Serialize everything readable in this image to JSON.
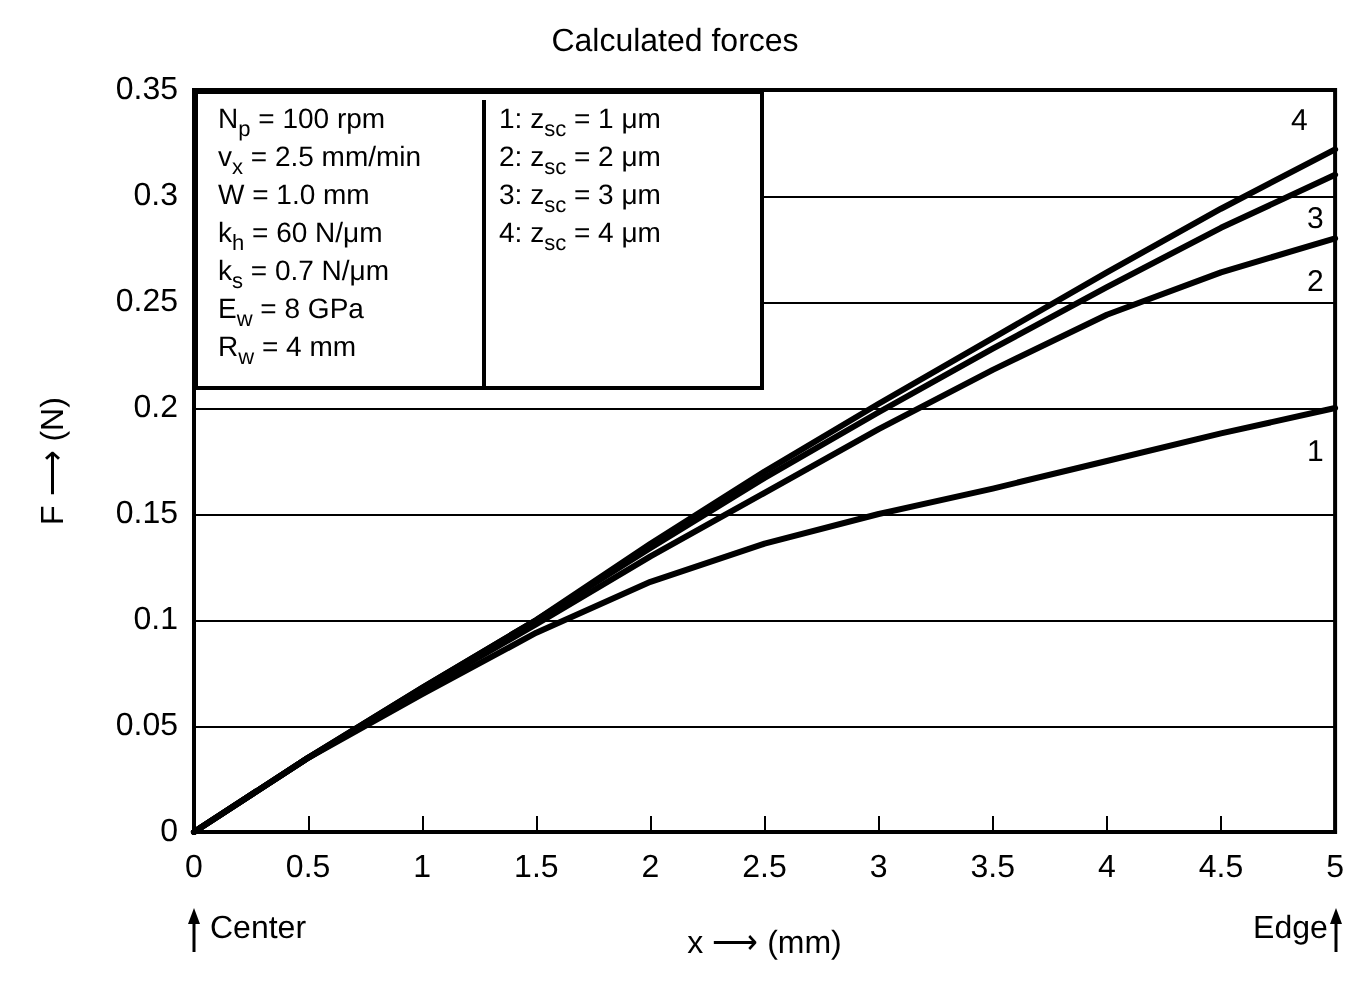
{
  "chart_data": {
    "type": "line",
    "title": "Calculated forces",
    "xlabel": "x ⟶ (mm)",
    "ylabel": "F ⟶ (N)",
    "x": [
      0,
      0.5,
      1,
      1.5,
      2,
      2.5,
      3,
      3.5,
      4,
      4.5,
      5
    ],
    "series": [
      {
        "name": "1",
        "color": "#000000",
        "values": [
          0,
          0.035,
          0.065,
          0.094,
          0.118,
          0.136,
          0.15,
          0.162,
          0.175,
          0.188,
          0.2
        ]
      },
      {
        "name": "2",
        "color": "#000000",
        "values": [
          0,
          0.035,
          0.067,
          0.098,
          0.13,
          0.16,
          0.19,
          0.218,
          0.244,
          0.264,
          0.28
        ]
      },
      {
        "name": "3",
        "color": "#000000",
        "values": [
          0,
          0.035,
          0.068,
          0.1,
          0.134,
          0.167,
          0.198,
          0.228,
          0.257,
          0.285,
          0.31
        ]
      },
      {
        "name": "4",
        "color": "#000000",
        "values": [
          0,
          0.035,
          0.068,
          0.1,
          0.136,
          0.17,
          0.202,
          0.233,
          0.264,
          0.294,
          0.322
        ]
      }
    ],
    "xlim": [
      0,
      5
    ],
    "xticks": [
      0,
      0.5,
      1,
      1.5,
      2,
      2.5,
      3,
      3.5,
      4,
      4.5,
      5
    ],
    "ylim": [
      0,
      0.35
    ],
    "yticks": [
      0,
      0.05,
      0.1,
      0.15,
      0.2,
      0.25,
      0.3,
      0.35
    ],
    "grid": "y",
    "marker": "none",
    "line_style": "solid",
    "annotations": [
      "N$_{p}$ = 100 rpm",
      "v$_{x}$ = 2.5 mm/min",
      "W = 1.0 mm",
      "k$_{h}$ = 60 N/μm",
      "k$_{s}$ = 0.7 N/μm",
      "E$_{w}$ = 8 GPa",
      "R$_{w}$ = 4 mm",
      "1: z$_{sc}$ = 1 μm",
      "2: z$_{sc}$ = 2 μm",
      "3: z$_{sc}$ = 3 μm",
      "4: z$_{sc}$ = 4 μm",
      "Center",
      "Edge"
    ]
  }
}
